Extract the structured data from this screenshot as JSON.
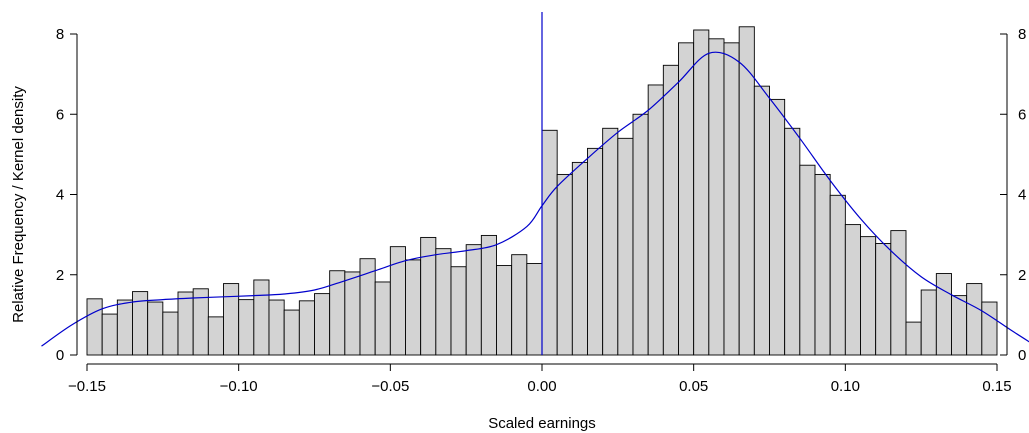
{
  "chart_data": {
    "type": "bar",
    "title": "",
    "xlabel": "Scaled earnings",
    "ylabel": "Relative Frequency / Kernel density",
    "xlim": [
      -0.15,
      0.15
    ],
    "ylim": [
      0,
      8
    ],
    "bin_width": 0.005,
    "bin_start": -0.15,
    "x_ticks": [
      -0.15,
      -0.1,
      -0.05,
      0.0,
      0.05,
      0.1,
      0.15
    ],
    "x_tick_labels": [
      "−0.15",
      "−0.10",
      "−0.05",
      "0.00",
      "0.05",
      "0.10",
      "0.15"
    ],
    "y_ticks": [
      0,
      2,
      4,
      6,
      8
    ],
    "y_tick_labels": [
      "0",
      "2",
      "4",
      "6",
      "8"
    ],
    "right_axis_tick_labels": [
      "0",
      "2",
      "4",
      "6",
      "8"
    ],
    "grid": false,
    "series": [
      {
        "kind": "histogram",
        "values": [
          1.4,
          1.02,
          1.37,
          1.58,
          1.32,
          1.07,
          1.57,
          1.65,
          0.95,
          1.78,
          1.38,
          1.87,
          1.37,
          1.12,
          1.35,
          1.53,
          2.1,
          2.07,
          2.4,
          1.82,
          2.7,
          2.37,
          2.93,
          2.65,
          2.2,
          2.75,
          2.98,
          2.23,
          2.5,
          2.28,
          5.6,
          4.5,
          4.8,
          5.15,
          5.65,
          5.4,
          6.0,
          6.73,
          7.22,
          7.78,
          8.1,
          7.88,
          7.78,
          8.18,
          6.7,
          6.37,
          5.65,
          4.73,
          4.5,
          3.98,
          3.25,
          2.95,
          2.78,
          3.1,
          0.82,
          1.62,
          2.03,
          1.48,
          1.78,
          1.32
        ],
        "fill": "#d3d3d3",
        "stroke": "#000000"
      },
      {
        "kind": "density",
        "x": [
          -0.165,
          -0.155,
          -0.145,
          -0.135,
          -0.125,
          -0.115,
          -0.105,
          -0.095,
          -0.085,
          -0.075,
          -0.065,
          -0.055,
          -0.045,
          -0.035,
          -0.025,
          -0.015,
          -0.005,
          0.0,
          0.005,
          0.015,
          0.025,
          0.035,
          0.045,
          0.055,
          0.065,
          0.075,
          0.085,
          0.095,
          0.105,
          0.115,
          0.125,
          0.135,
          0.145,
          0.155,
          0.165
        ],
        "y": [
          0.22,
          0.75,
          1.15,
          1.32,
          1.38,
          1.42,
          1.45,
          1.48,
          1.52,
          1.62,
          1.85,
          2.1,
          2.35,
          2.5,
          2.6,
          2.75,
          3.2,
          3.72,
          4.2,
          4.9,
          5.55,
          6.1,
          6.8,
          7.52,
          7.3,
          6.4,
          5.4,
          4.35,
          3.4,
          2.6,
          1.95,
          1.5,
          1.1,
          0.6,
          0.12
        ],
        "color": "#0000cc"
      }
    ],
    "annotations": [
      {
        "kind": "vertical_line",
        "x": 0.0,
        "color": "#0000cc"
      }
    ]
  }
}
